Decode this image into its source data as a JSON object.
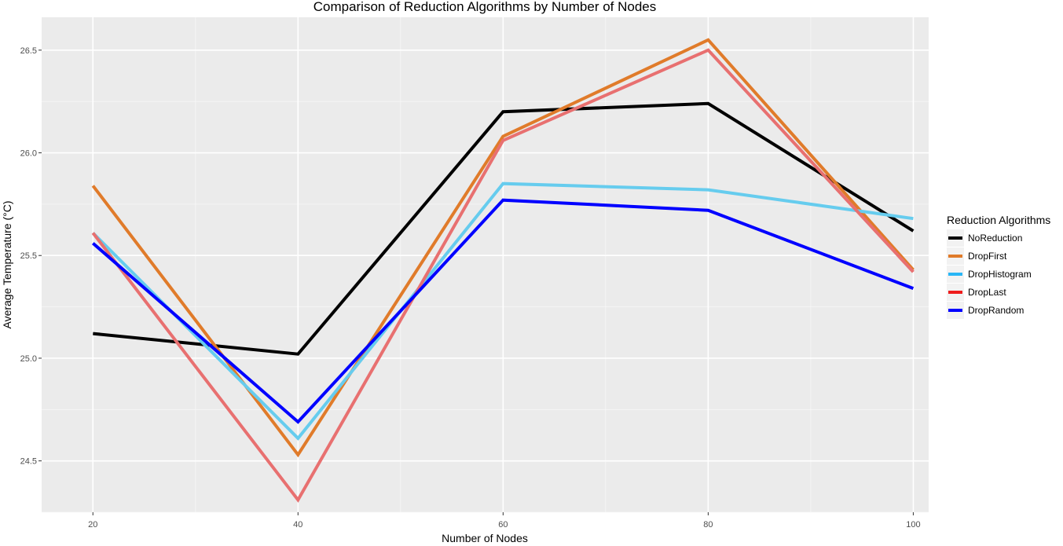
{
  "chart_data": {
    "type": "line",
    "title": "Comparison of Reduction Algorithms by Number of Nodes",
    "xlabel": "Number of Nodes",
    "ylabel": "Average Temperature (°C)",
    "x": [
      20,
      40,
      60,
      80,
      100
    ],
    "x_ticks": [
      "20",
      "40",
      "60",
      "80",
      "100"
    ],
    "y_ticks": [
      "24.5",
      "25.0",
      "25.5",
      "26.0",
      "26.5"
    ],
    "xlim": [
      15,
      101.5
    ],
    "ylim": [
      24.25,
      26.66
    ],
    "grid": true,
    "legend": {
      "title": "Reduction Algorithms",
      "position": "right"
    },
    "series": [
      {
        "name": "NoReduction",
        "color": "#000000",
        "values": [
          25.12,
          25.02,
          26.2,
          26.24,
          25.62
        ]
      },
      {
        "name": "DropFirst",
        "color": "#e07b2a",
        "values": [
          25.84,
          24.53,
          26.08,
          26.55,
          25.43
        ]
      },
      {
        "name": "DropHistogram",
        "color": "#29b6f6",
        "line_color": "#66ccee",
        "values": [
          25.61,
          24.61,
          25.85,
          25.82,
          25.68
        ]
      },
      {
        "name": "DropLast",
        "color": "#ee1c1c",
        "line_color": "#e87070",
        "values": [
          25.61,
          24.31,
          26.06,
          26.5,
          25.42
        ]
      },
      {
        "name": "DropRandom",
        "color": "#0000ff",
        "values": [
          25.56,
          24.69,
          25.77,
          25.72,
          25.34
        ]
      }
    ]
  }
}
